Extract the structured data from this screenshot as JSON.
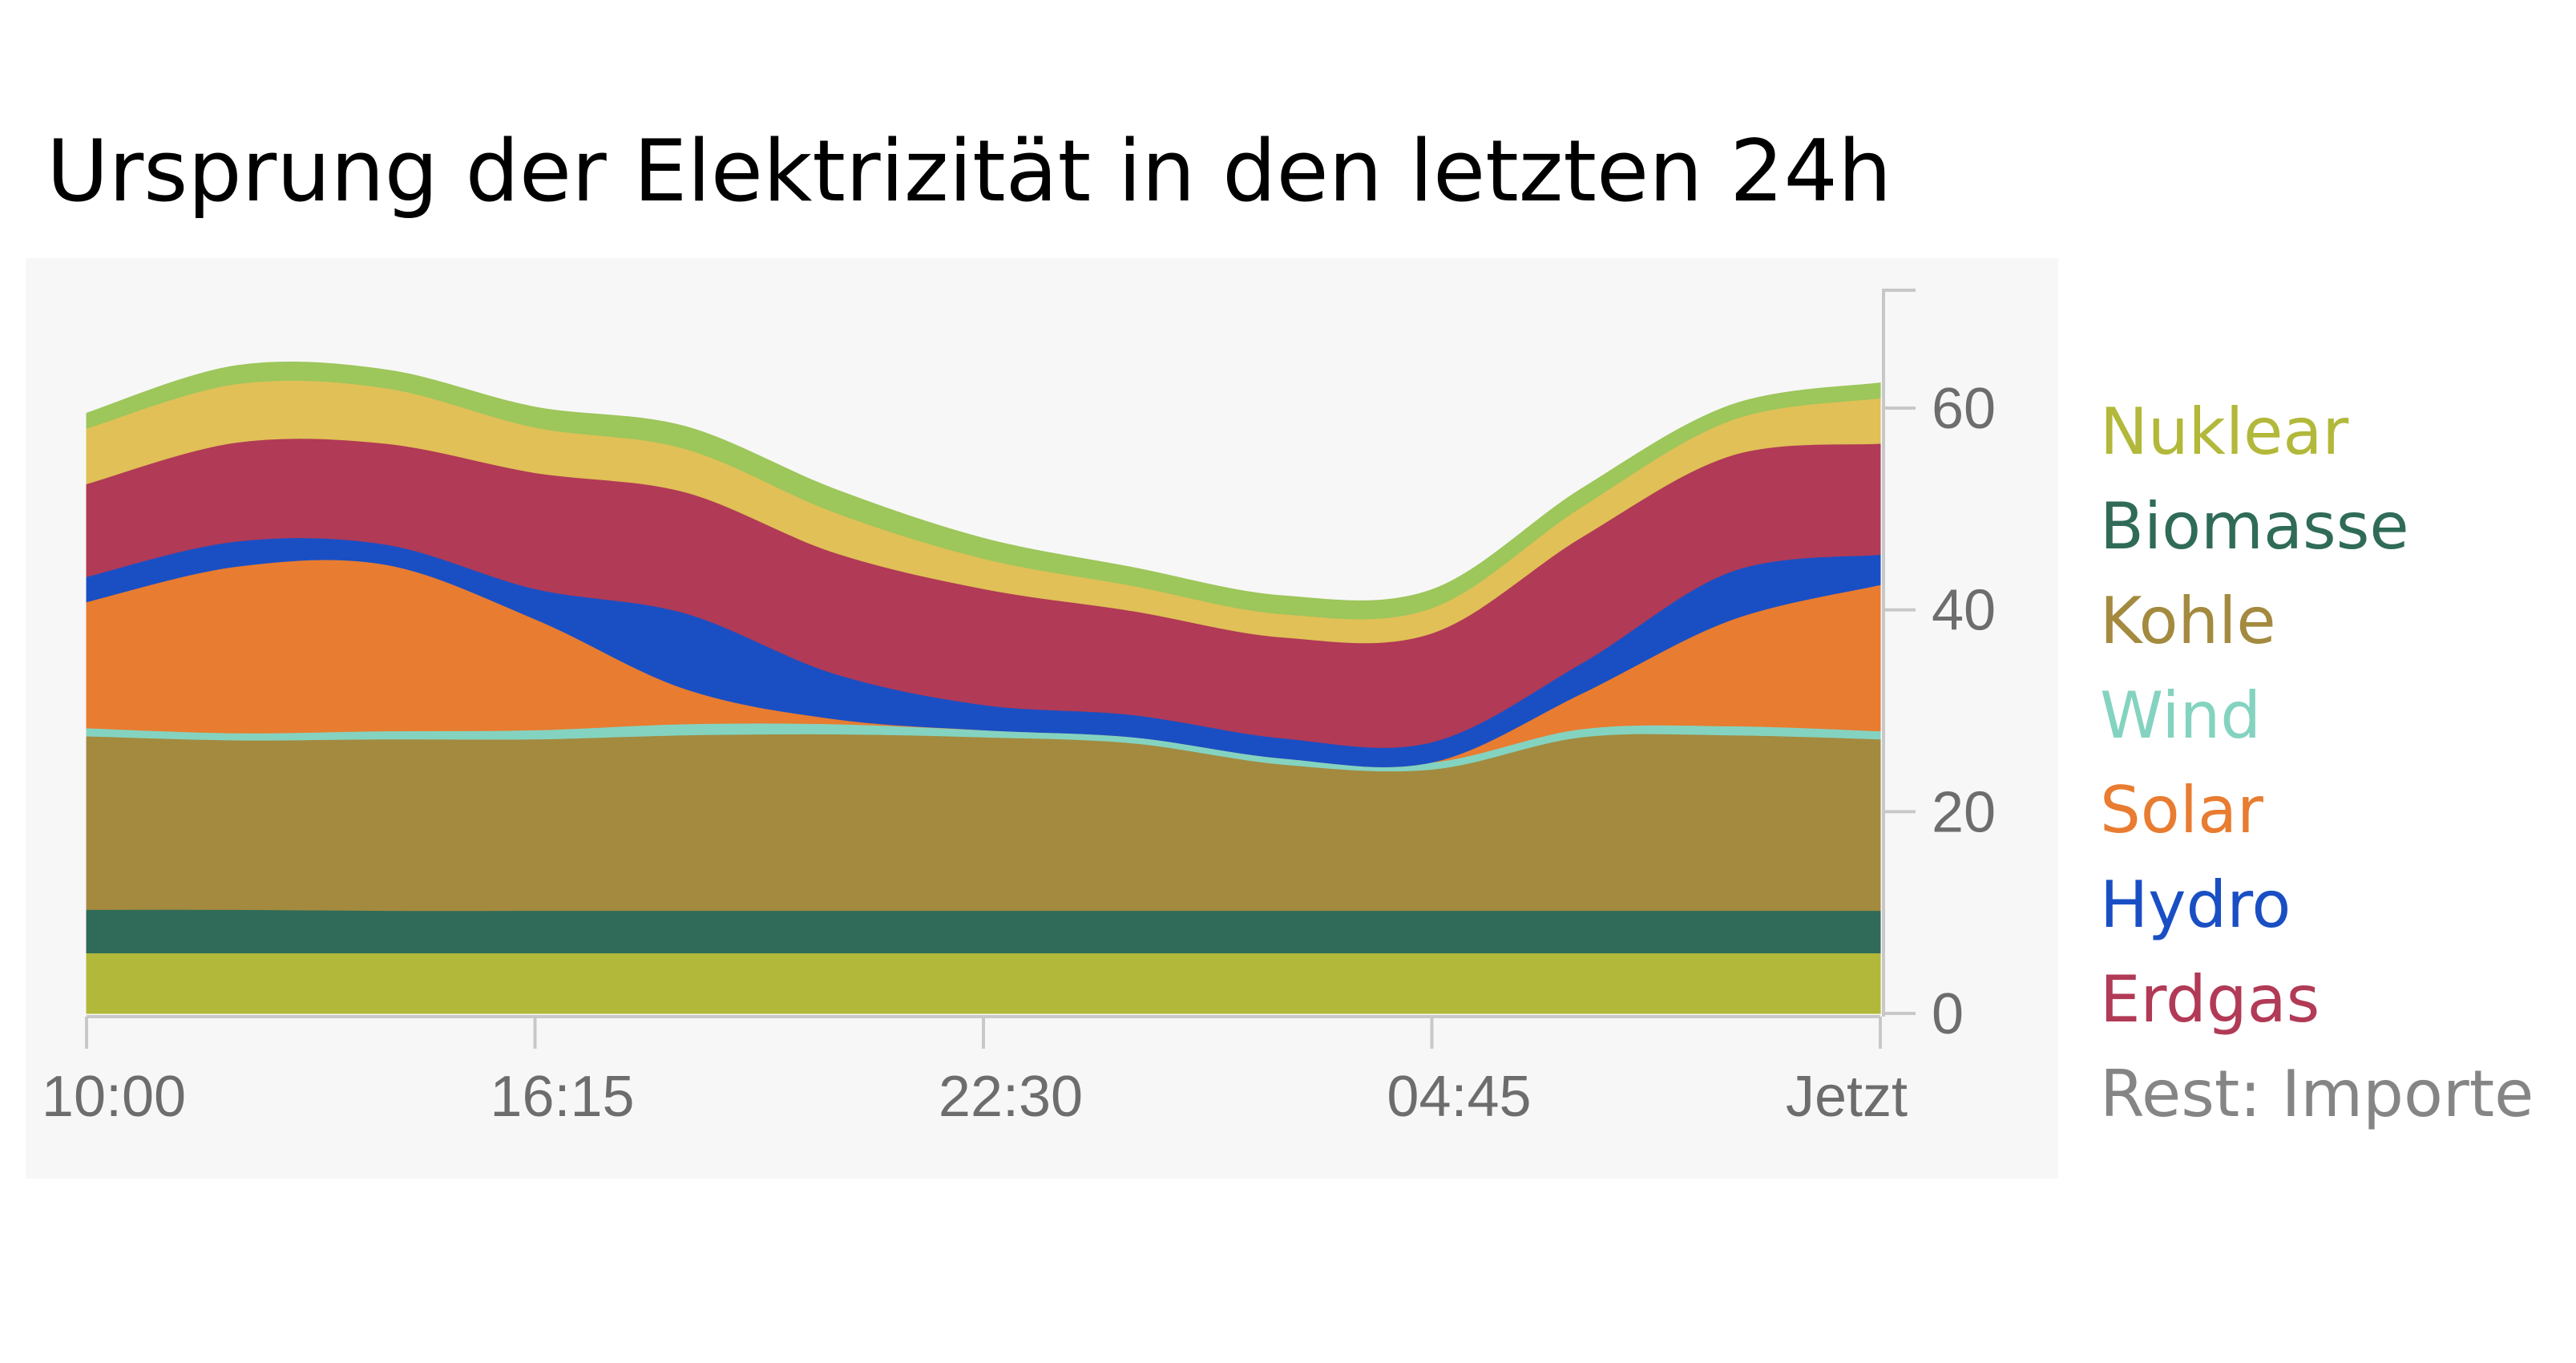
{
  "title": "Ursprung der Elektrizität in den letzten 24h",
  "legend": [
    {
      "label": "Nuklear",
      "color": "#b2b83a"
    },
    {
      "label": "Biomasse",
      "color": "#2f6b58"
    },
    {
      "label": "Kohle",
      "color": "#a38a3f"
    },
    {
      "label": "Wind",
      "color": "#84d3c0"
    },
    {
      "label": "Solar",
      "color": "#e87c30"
    },
    {
      "label": "Hydro",
      "color": "#1a4fc4"
    },
    {
      "label": "Erdgas",
      "color": "#b13a56"
    },
    {
      "label": "Rest: Importe",
      "color": "#858585"
    }
  ],
  "chart_data": {
    "type": "area",
    "stacked": true,
    "title": "Ursprung der Elektrizität in den letzten 24h",
    "xlabel": "",
    "ylabel": "",
    "x_tick_labels": [
      "10:00",
      "16:15",
      "22:30",
      "04:45",
      "Jetzt"
    ],
    "y_ticks": [
      0,
      20,
      40,
      60
    ],
    "ylim": [
      0,
      72
    ],
    "y_axis_position": "right",
    "grid": false,
    "x": [
      0,
      2,
      4,
      6,
      8,
      10,
      12,
      14,
      16,
      18,
      20,
      22,
      24
    ],
    "series": [
      {
        "name": "Nuklear",
        "color": "#b2b83a",
        "values": [
          6,
          6,
          6,
          6,
          6,
          6,
          6,
          6,
          6,
          6,
          6,
          6,
          6
        ]
      },
      {
        "name": "Biomasse",
        "color": "#2f6b58",
        "values": [
          4.3,
          4.3,
          4.2,
          4.2,
          4.2,
          4.2,
          4.2,
          4.2,
          4.2,
          4.2,
          4.2,
          4.2,
          4.2
        ]
      },
      {
        "name": "Kohle",
        "color": "#a38a3f",
        "values": [
          17.2,
          16.8,
          17.0,
          17.0,
          17.4,
          17.5,
          17.2,
          16.6,
          14.5,
          14.0,
          17.2,
          17.4,
          17.0
        ]
      },
      {
        "name": "Wind",
        "color": "#84d3c0",
        "values": [
          0.8,
          0.7,
          0.8,
          0.9,
          1.1,
          1.0,
          0.7,
          0.6,
          0.6,
          0.7,
          0.8,
          0.9,
          0.8
        ]
      },
      {
        "name": "Solar",
        "color": "#e87c30",
        "values": [
          12.5,
          16.5,
          16.5,
          11.0,
          3.5,
          0.5,
          0.0,
          0.0,
          0.0,
          0.0,
          3.5,
          10.5,
          14.5
        ]
      },
      {
        "name": "Hydro",
        "color": "#1a4fc4",
        "values": [
          2.5,
          2.5,
          2.0,
          3.0,
          7.5,
          4.5,
          2.5,
          2.2,
          2.0,
          2.0,
          3.0,
          4.8,
          3.0
        ]
      },
      {
        "name": "Erdgas",
        "color": "#b13a56",
        "values": [
          9.2,
          9.8,
          10.0,
          11.5,
          12.0,
          12.0,
          11.5,
          10.3,
          10.0,
          10.8,
          12.5,
          11.5,
          11.0
        ]
      },
      {
        "name": "Rest: Importe",
        "color": "#e0c057",
        "values": [
          5.5,
          5.8,
          5.5,
          4.5,
          4.3,
          4.0,
          3.0,
          2.5,
          2.3,
          2.5,
          3.0,
          3.5,
          4.5
        ]
      },
      {
        "color": "#9dc65b",
        "values": [
          1.5,
          1.8,
          1.8,
          2.0,
          2.2,
          2.3,
          2.0,
          1.8,
          1.8,
          1.8,
          1.8,
          1.5,
          1.5
        ]
      }
    ]
  }
}
